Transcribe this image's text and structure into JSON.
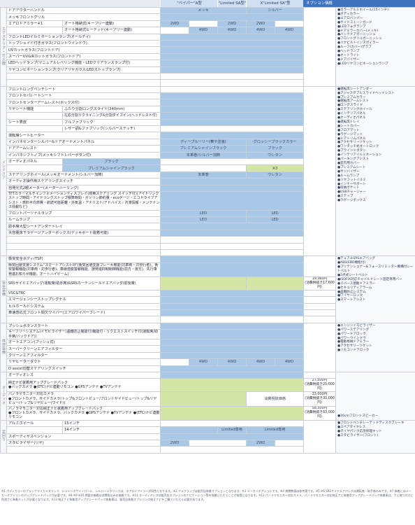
{
  "header": {
    "col_a": "\"ペイパー\"A型",
    "col_b": "\"Limited SA型\"",
    "col_c": "X\"Limited SA\"型",
    "col_opt": "オプション価格"
  },
  "categories": {
    "exterior": "エクステリア・灯火器",
    "interior": "インテリア",
    "safety": "安全装備",
    "body": "体感装備",
    "audio": "オーディオ",
    "other": "足回り"
  },
  "rows": {
    "r1": "ドアアウターハンドル",
    "r1a": "メッキ",
    "r1c": "シルバー",
    "r2": "メッキフロントグリル",
    "r3": "エアロドアミラー※1",
    "r3s": "オート格納式(キーフリー連動)",
    "r4s": "オート格納式ヒーテッド(キーフリー連動)",
    "r5": "フロントLEDイルミネーションランプ(オールデイ)",
    "r6": "トップシェイド付きガラス(フロントウインドウ)",
    "r7": "UVカットガラス(フロントドア)",
    "r8": "スーパーUV&IRカットガラス(フロントドア)",
    "r9": "LEDヘッドランプ(マニュアルレベリング機能・LEDクリアランスランプ付)",
    "r10": "リヤコンビネーションランプ(クリアリヤガラス/LEDストップランプ)",
    "i1": "フロントロングベンチシート",
    "i2": "フロントセパレートシート",
    "i3": "フロントセンターアームレスト(ボックス付)",
    "i4": "リヤシート機能",
    "i4s": "ふたり分割ロングスライド(240mm)",
    "i5s": "左右分割リクライニング&分割ダイブイン(ヘッドレスト付)",
    "i6": "シート表皮",
    "i6s": "フルファブリック",
    "i7s": "レザー調&ファブリック(シルバーステッチ)",
    "i8": "運転席シートヒーター",
    "i9": "インパネセンターシルバー&ドアオーナメントパネル",
    "i9a": "ディープルーリー(華や塗装)",
    "i9b": "グロッシーブラックカラー",
    "i10": "ドアアームレスト",
    "i10a": "プレミアムシャインブラック",
    "i10b": "ブラック",
    "i11": "インパネシフトノブ(メッキシフトレバーボタン付)",
    "i11a": "本革巻/シルバー加飾",
    "i11b": "ウレタン",
    "i12": "オーディオパネル",
    "i12a": "ブラック",
    "i13a": "プレミアムシャインブラック",
    "i13x": "※3",
    "i14": "ステアリングホイール(メッキオーナメント/シルバー加飾)",
    "i14a": "本革巻",
    "i14b": "ウレタン",
    "i15": "オーディオ操作用ステアリングスイッチ",
    "i16": "自発光式2眼メーター(メーターハーリング)",
    "i17": "TFTカラーマルチインフォメーションディスプレイ(燃費ステアリング スイッチ付)(アイドリングストップ時間・アイドリングストップ積算時間・ガソリン節約量・ecoゲージ・エコドライブアシスト・燃料平均燃費・航続可能距離・外気温・アナリスト/アドバイス・渋滞情報・メンテナンス情報など)",
    "i17x": "※4",
    "i18": "フロントパーソナルランプ",
    "i18a": "LED",
    "i19": "ルームランプ",
    "i20": "助手席大型シートアンダートレイ",
    "i21": "大容量床下ラゲージアンダーボックス(デッキボード脱着可能)",
    "i21x": "※5",
    "s1": "衝突安全ボディ(TSP)",
    "s2": "衝突回避支援システム\"スマートアシストIII\"(衝突回避支援ブレーキ機能(対車両・対歩行者)、衝突警報機能(対車両・対歩行者)、車線逸脱警報機能、誤発進抑制制御機能(前方・後方)、先行車発進お知らせ機能、オートハイビーム)",
    "s3": "SRSサイドエアバッグ(運転席/助手席)&SRSカーテンシールドエアバッグ(前後席)",
    "s3x": "※6",
    "s4": "VSC&TRC",
    "s5": "エマージェンシーストップシグナル",
    "s6": "ヒルホールドシステム",
    "s7": "車速感応式フロント間欠ワイパー(エアロワイパーブレード)",
    "b1": "プッシュボタンスタート",
    "b2": "キーフリーシステム(イモビライザー(盗難防止機能付)機能付・リクエストスイッチ付(運転席/助手席/バックドア))",
    "b3": "オートエアコン(プッシュ式)",
    "b4": "スーパークリーンエアフィルター",
    "b5": "クリーンエアフィルター",
    "b6": "リヤヒーターダクト",
    "b6a": "4WD",
    "b7": "D assist切替ステアリングスイッチ",
    "a1": "オーディオレス",
    "a1x": "※11",
    "a2": "純正ナビ装着用アップグレードパック",
    "a2s": "●バックカメラ ●(ETC)ナビ連動リモコン ●GPSアンテナ ●TVアンテナ",
    "a2x": "※12※13",
    "a3": "パノラマモニター対応カメラ",
    "a3s": "●フロントカメラ、サイドカメラ(トップ&フロントビュー/フロントサイドビュー/トップ&リヤビュー/トップ&リヤビュー(ワイド))",
    "a3x": "※12",
    "a4": "パノラマモニター対応純正ナビ装着用アップグレードパック",
    "a4s": "●フロントカメラ、サイドカメラ、バックカメラ ●GPSアンテナ ●TVアンテナ ●(ETC)ナビ連動リモコン",
    "a4x": "※12※13",
    "f1": "アルミホイール",
    "f1s": "15インチ",
    "f2s": "14インチ",
    "f2b": "Limited専用",
    "f2c": "Limited専用",
    "f3": "スポーティサスペンション",
    "f4": "スタビライザー(リヤ)",
    "f4a": "2WD",
    "f4b": "2WD",
    "cell2wd": "2WD",
    "cell4wd": "4WD",
    "led": "LED",
    "option_note": "※実施を想定",
    "p1": "19,360円",
    "p1s": "(消費税抜き17,600円)",
    "p2": "27,500円",
    "p2s": "(消費税抜き25,000円)",
    "p3": "33,000円",
    "p3s": "(消費税抜き30,000円)",
    "p4": "58,300円",
    "p4s": "(消費税抜き53,000円)",
    "poption": "消費税抜価格"
  },
  "options": {
    "ext": [
      "●カラーアルミホイール(15インチ)",
      "●ボディカラー",
      "●エアロバンパー",
      "●サイドストーンガード",
      "●LEDフォグランプ",
      "●ドアミラーカバー(メッキ)",
      "●バックドアガーニッシュ",
      "●フロントグリルガーニッシュ",
      "●リヤビルトインスポイラー",
      "●ルーフ(カバー)グラブ",
      "●ヘッドランプ",
      "●オートライト",
      "●ドアバイザー",
      "●LEDリヤコンビネーションランプ",
      "●ナンバーフレーム"
    ],
    "int": [
      "●運転席シートアンダー",
      "●アジャスタブルスライドヘッドレスト",
      "●プレミアムカラー",
      "●運転席アームレスト",
      "●ロングスライド",
      "●ステアリングホイール",
      "●インテリアパネル",
      "●オーディオパネル",
      "●運転席トレイ",
      "●シートカバー",
      "●フロアマット",
      "●ラゲージマット",
      "●ドアトリムパネル",
      "●アクセサリーソケット",
      "●ワンタッチ式オートロック",
      "●ブラインドボタン",
      "●インテリアイルミネーション",
      "●パーキングアシスト",
      "●室内用カバー",
      "●プレミアムシート",
      "●サンバイザー",
      "●ルームランプ",
      "●リヤフットイルミ",
      "●インナーサポート",
      "●収納ポケット",
      "●USBチャージャー",
      "●ステップ",
      "●ラゲージボックス"
    ],
    "safe": [
      "●デュアルSRSエアバッグ",
      "●ABS(EBD機能付)",
      "●プリテンショナー&フォースリミッター機構付シートベルト",
      "●3点式シートベルト",
      "●ISOFIX対応チャイルドシート固定専用バー",
      "●リバース連動ドアミラー",
      "●セキュリティアラーム",
      "●盗難防止システム",
      "●ワイヤーロック",
      "●スマートアシスト"
    ],
    "body": [
      "●エンジンイモビライザー",
      "●パワーステアリング",
      "●パワードアロック",
      "●パワーウインドウ",
      "●電動格納ドアミラー",
      "●アクセサリーソケット",
      "●リモコンドアロック"
    ],
    "aud": [
      "●16cmフロントスピーカー"
    ],
    "chas": [
      "●フロントベンチレーテッドディスクブレーキ",
      "●スペアタイヤレス",
      "●タイヤパンク応急修理キット",
      "●スタビライザー(フロント)"
    ]
  },
  "footnote": "※1 ボディカラーのブラックマイカメタリック、シャインホワイトパール、シルバーメタリックは、エアロドアミラーが同色となります。※2 フォグランプは販売店装着オプションとなります。※3 メーカーオプションです。※4 燃費数値は参考値です。※5 ※6 SRSサイドエアバッグは運転席・助手席のみです。※7 装着にはメーカーオプションのアップグレードパックが必要です。※8 ※9 ※10 掲載の価格は消費税込みの価格です。※11 オーディオレスは販売店オプションのナビゲーション等を装着いただくことが前提となります。※12 パノラマモニター対応カメラ、パノラマモニター対応純正ナビ装着用アップグレードパック装着車は、ナビ取り付けに別途ナビ装着キットが必要となります。※13 純正ナビ装着用アップグレードパック装着車は、販売店装着オプションの純正ナビをご購入いただく必要があります。"
}
